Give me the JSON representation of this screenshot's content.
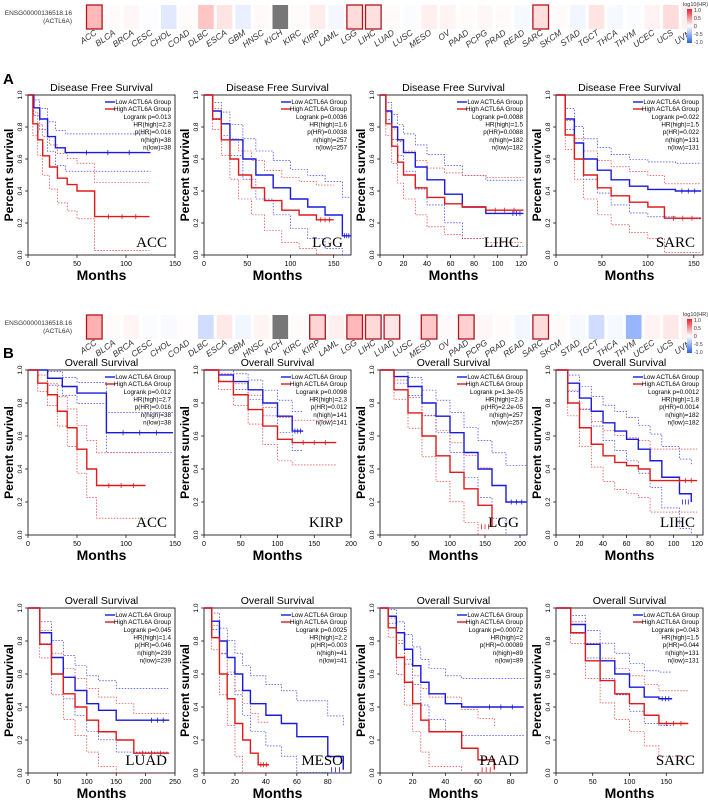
{
  "heatmap_top": {
    "gene_id": "ENSG00000136518.16",
    "gene_symbol": "(ACTL6A)",
    "cancers": [
      "ACC",
      "BLCA",
      "BRCA",
      "CESC",
      "CHOL",
      "COAD",
      "DLBC",
      "ESCA",
      "GBM",
      "HNSC",
      "KICH",
      "KIRC",
      "KIRP",
      "LAML",
      "LGG",
      "LIHC",
      "LUAD",
      "LUSC",
      "MESO",
      "OV",
      "PAAD",
      "PCPG",
      "PRAD",
      "READ",
      "SARC",
      "SKCM",
      "STAD",
      "TGCT",
      "THCA",
      "THYM",
      "UCEC",
      "UCS",
      "UVM"
    ],
    "log10hr": [
      0.36,
      0.02,
      0.04,
      -0.01,
      -0.14,
      0.02,
      0.3,
      0.14,
      -0.1,
      0.03,
      null,
      0.02,
      0.1,
      -0.05,
      0.18,
      0.16,
      0.02,
      -0.02,
      0.08,
      0.06,
      0.02,
      0.04,
      0.02,
      -0.04,
      0.17,
      0.02,
      -0.06,
      0.14,
      -0.04,
      -0.02,
      0.06,
      0.18,
      0.08
    ],
    "highlight": [
      "ACC",
      "LGG",
      "LIHC",
      "SARC"
    ],
    "legend_title": "log10(HR)",
    "legend_ticks": [
      "1.0",
      "0.5",
      "0",
      "-0.5",
      "-1.0"
    ]
  },
  "heatmap_bottom": {
    "gene_id": "ENSG00000136518.16",
    "gene_symbol": "(ACTL6A)",
    "log10hr": [
      0.4,
      0.02,
      0.05,
      -0.02,
      -0.03,
      0.01,
      -0.22,
      0.12,
      -0.06,
      0.05,
      null,
      0.02,
      0.22,
      0.08,
      0.36,
      0.2,
      0.14,
      -0.02,
      0.28,
      0.03,
      0.24,
      0.04,
      0.02,
      -0.05,
      0.18,
      0.02,
      -0.04,
      -0.22,
      -0.04,
      -0.48,
      0.06,
      0.12,
      0.08
    ],
    "highlight": [
      "ACC",
      "KIRP",
      "LGG",
      "LIHC",
      "LUAD",
      "MESO",
      "PAAD",
      "SARC"
    ],
    "legend_title": "log10(HR)",
    "legend_ticks": [
      "1.0",
      "0.5",
      "0",
      "-0.5",
      "-1.0"
    ]
  },
  "labels": {
    "panel_a": "A",
    "panel_b": "B"
  },
  "legend": {
    "low": "Low ACTL6A Group",
    "high": "High ACTL6A Group"
  },
  "axis": {
    "ylabel": "Percent survival",
    "xlabel": "Months"
  },
  "colors": {
    "low": "#1a1adb",
    "high": "#e01a1a",
    "neg": "#3b6cf0",
    "pos": "#f04a4a",
    "na": "#777777"
  },
  "chart_data": [
    {
      "type": "line",
      "id": "dfs-acc",
      "title": "Disease Free Survival",
      "cancer": "ACC",
      "xlim": [
        0,
        150
      ],
      "xticks": [
        0,
        50,
        100,
        150
      ],
      "ylim": [
        0,
        1
      ],
      "stats": [
        "Logrank p=0.013",
        "HR(high)=2.3",
        "p(HR)=0.016",
        "n(high)=38",
        "n(low)=38"
      ],
      "series": [
        {
          "name": "Low ACTL6A Group",
          "x": [
            0,
            6,
            12,
            20,
            28,
            38,
            125
          ],
          "y": [
            1,
            0.92,
            0.85,
            0.74,
            0.67,
            0.64,
            0.64
          ]
        },
        {
          "name": "High ACTL6A Group",
          "x": [
            0,
            5,
            10,
            15,
            22,
            30,
            40,
            50,
            68,
            124
          ],
          "y": [
            1,
            0.82,
            0.72,
            0.62,
            0.55,
            0.48,
            0.44,
            0.4,
            0.24,
            0.24
          ]
        }
      ]
    },
    {
      "type": "line",
      "id": "dfs-lgg",
      "title": "Disease Free Survival",
      "cancer": "LGG",
      "xlim": [
        0,
        170
      ],
      "xticks": [
        0,
        50,
        100,
        150
      ],
      "ylim": [
        0,
        1
      ],
      "stats": [
        "Logrank p=0.0036",
        "HR(high)=1.6",
        "p(HR)=0.0038",
        "n(high)=257",
        "n(low)=257"
      ],
      "series": [
        {
          "name": "Low ACTL6A Group",
          "x": [
            0,
            10,
            20,
            30,
            45,
            60,
            80,
            100,
            120,
            140,
            160,
            170
          ],
          "y": [
            1,
            0.9,
            0.82,
            0.72,
            0.6,
            0.5,
            0.42,
            0.35,
            0.3,
            0.25,
            0.12,
            0.12
          ]
        },
        {
          "name": "High ACTL6A Group",
          "x": [
            0,
            10,
            20,
            30,
            40,
            55,
            70,
            90,
            110,
            130,
            150
          ],
          "y": [
            1,
            0.85,
            0.72,
            0.6,
            0.5,
            0.42,
            0.34,
            0.28,
            0.25,
            0.22,
            0.22
          ]
        }
      ]
    },
    {
      "type": "line",
      "id": "dfs-lihc",
      "title": "Disease Free Survival",
      "cancer": "LIHC",
      "xlim": [
        0,
        125
      ],
      "xticks": [
        0,
        20,
        40,
        60,
        80,
        100,
        120
      ],
      "ylim": [
        0,
        1
      ],
      "stats": [
        "Logrank p=0.0088",
        "HR(high)=1.5",
        "p(HR)=0.0088",
        "n(high)=182",
        "n(low)=182"
      ],
      "series": [
        {
          "name": "Low ACTL6A Group",
          "x": [
            0,
            5,
            10,
            15,
            20,
            30,
            40,
            55,
            70,
            90,
            110,
            122
          ],
          "y": [
            1,
            0.9,
            0.8,
            0.72,
            0.64,
            0.55,
            0.47,
            0.38,
            0.3,
            0.26,
            0.26,
            0.26
          ]
        },
        {
          "name": "High ACTL6A Group",
          "x": [
            0,
            5,
            10,
            15,
            20,
            30,
            40,
            55,
            70,
            90,
            122
          ],
          "y": [
            1,
            0.82,
            0.68,
            0.58,
            0.5,
            0.42,
            0.36,
            0.32,
            0.3,
            0.28,
            0.28
          ]
        }
      ]
    },
    {
      "type": "line",
      "id": "dfs-sarc",
      "title": "Disease Free Survival",
      "cancer": "SARC",
      "xlim": [
        0,
        160
      ],
      "xticks": [
        0,
        50,
        100,
        150
      ],
      "ylim": [
        0,
        1
      ],
      "stats": [
        "Logrank p=0.022",
        "HR(high)=1.5",
        "p(HR)=0.022",
        "n(high)=131",
        "n(low)=131"
      ],
      "series": [
        {
          "name": "Low ACTL6A Group",
          "x": [
            0,
            10,
            20,
            30,
            45,
            60,
            80,
            100,
            130,
            158
          ],
          "y": [
            1,
            0.85,
            0.7,
            0.6,
            0.53,
            0.47,
            0.43,
            0.41,
            0.4,
            0.4
          ]
        },
        {
          "name": "High ACTL6A Group",
          "x": [
            0,
            10,
            20,
            30,
            45,
            60,
            80,
            100,
            118,
            158
          ],
          "y": [
            1,
            0.75,
            0.6,
            0.5,
            0.42,
            0.37,
            0.33,
            0.3,
            0.23,
            0.23
          ]
        }
      ]
    },
    {
      "type": "line",
      "id": "os-acc",
      "title": "Overall Survival",
      "cancer": "ACC",
      "xlim": [
        0,
        150
      ],
      "xticks": [
        0,
        50,
        100,
        150
      ],
      "ylim": [
        0,
        1
      ],
      "stats": [
        "Logrank p=0.012",
        "HR(high)=2.7",
        "p(HR)=0.016",
        "n(high)=38",
        "n(low)=38"
      ],
      "series": [
        {
          "name": "Low ACTL6A Group",
          "x": [
            0,
            10,
            20,
            35,
            50,
            80,
            148
          ],
          "y": [
            1,
            1,
            0.95,
            0.9,
            0.86,
            0.62,
            0.62
          ]
        },
        {
          "name": "High ACTL6A Group",
          "x": [
            0,
            10,
            20,
            30,
            40,
            50,
            60,
            70,
            120
          ],
          "y": [
            1,
            0.92,
            0.85,
            0.75,
            0.65,
            0.52,
            0.4,
            0.3,
            0.3
          ]
        }
      ]
    },
    {
      "type": "line",
      "id": "os-kirp",
      "title": "Overall Survival",
      "cancer": "KIRP",
      "xlim": [
        0,
        200
      ],
      "xticks": [
        0,
        50,
        100,
        150,
        200
      ],
      "ylim": [
        0,
        1
      ],
      "stats": [
        "Logrank p=0.0098",
        "HR(high)=2.3",
        "p(HR)=0.012",
        "n(high)=141",
        "n(low)=141"
      ],
      "series": [
        {
          "name": "Low ACTL6A Group",
          "x": [
            0,
            20,
            40,
            60,
            80,
            100,
            120,
            135
          ],
          "y": [
            1,
            0.97,
            0.93,
            0.88,
            0.8,
            0.72,
            0.63,
            0.63
          ]
        },
        {
          "name": "High ACTL6A Group",
          "x": [
            0,
            20,
            40,
            60,
            80,
            100,
            120,
            180
          ],
          "y": [
            1,
            0.93,
            0.85,
            0.76,
            0.66,
            0.58,
            0.56,
            0.56
          ]
        }
      ]
    },
    {
      "type": "line",
      "id": "os-lgg",
      "title": "Overall Survival",
      "cancer": "LGG",
      "xlim": [
        0,
        210
      ],
      "xticks": [
        0,
        50,
        100,
        150,
        200
      ],
      "ylim": [
        0,
        1
      ],
      "stats": [
        "Logrank p=1.3e-05",
        "HR(high)=2.3",
        "p(HR)=2.2e-05",
        "n(high)=257",
        "n(low)=257"
      ],
      "series": [
        {
          "name": "Low ACTL6A Group",
          "x": [
            0,
            20,
            40,
            60,
            80,
            100,
            120,
            140,
            160,
            180,
            210
          ],
          "y": [
            1,
            0.96,
            0.9,
            0.8,
            0.72,
            0.62,
            0.5,
            0.4,
            0.3,
            0.2,
            0.2
          ]
        },
        {
          "name": "High ACTL6A Group",
          "x": [
            0,
            20,
            40,
            60,
            80,
            100,
            120,
            140,
            160
          ],
          "y": [
            1,
            0.88,
            0.74,
            0.6,
            0.48,
            0.38,
            0.28,
            0.18,
            0.05
          ]
        }
      ]
    },
    {
      "type": "line",
      "id": "os-lihc",
      "title": "Overall Survival",
      "cancer": "LIHC",
      "xlim": [
        0,
        125
      ],
      "xticks": [
        0,
        20,
        40,
        60,
        80,
        100,
        120
      ],
      "ylim": [
        0,
        1
      ],
      "stats": [
        "Logrank p=0.0012",
        "HR(high)=1.8",
        "p(HR)=0.0014",
        "n(high)=182",
        "n(low)=182"
      ],
      "series": [
        {
          "name": "Low ACTL6A Group",
          "x": [
            0,
            10,
            20,
            30,
            40,
            50,
            60,
            70,
            80,
            90,
            105,
            115
          ],
          "y": [
            1,
            0.92,
            0.83,
            0.75,
            0.68,
            0.63,
            0.58,
            0.52,
            0.45,
            0.35,
            0.25,
            0.2
          ]
        },
        {
          "name": "High ACTL6A Group",
          "x": [
            0,
            10,
            20,
            30,
            40,
            50,
            60,
            70,
            80,
            100,
            120
          ],
          "y": [
            1,
            0.8,
            0.65,
            0.55,
            0.48,
            0.44,
            0.42,
            0.4,
            0.33,
            0.33,
            0.33
          ]
        }
      ]
    },
    {
      "type": "line",
      "id": "os-luad",
      "title": "Overall Survival",
      "cancer": "LUAD",
      "xlim": [
        0,
        250
      ],
      "xticks": [
        0,
        50,
        100,
        150,
        200,
        250
      ],
      "ylim": [
        0,
        1
      ],
      "stats": [
        "Logrank p=0.045",
        "HR(high)=1.4",
        "p(HR)=0.046",
        "n(high)=239",
        "n(low)=239"
      ],
      "series": [
        {
          "name": "Low ACTL6A Group",
          "x": [
            0,
            20,
            40,
            60,
            80,
            100,
            120,
            150,
            200,
            240
          ],
          "y": [
            1,
            0.85,
            0.7,
            0.58,
            0.5,
            0.42,
            0.38,
            0.32,
            0.32,
            0.32
          ]
        },
        {
          "name": "High ACTL6A Group",
          "x": [
            0,
            20,
            40,
            60,
            80,
            100,
            120,
            150,
            180,
            240
          ],
          "y": [
            1,
            0.78,
            0.6,
            0.48,
            0.4,
            0.32,
            0.25,
            0.2,
            0.12,
            0.12
          ]
        }
      ]
    },
    {
      "type": "line",
      "id": "os-meso",
      "title": "Overall Survival",
      "cancer": "MESO",
      "xlim": [
        0,
        95
      ],
      "xticks": [
        0,
        20,
        40,
        60,
        80
      ],
      "ylim": [
        0,
        1
      ],
      "stats": [
        "Logrank p=0.0025",
        "HR(high)=2.2",
        "p(HR)=0.003",
        "n(high)=41",
        "n(low)=41"
      ],
      "series": [
        {
          "name": "Low ACTL6A Group",
          "x": [
            0,
            5,
            10,
            15,
            20,
            25,
            30,
            40,
            50,
            60,
            80,
            90
          ],
          "y": [
            1,
            0.92,
            0.8,
            0.7,
            0.6,
            0.5,
            0.42,
            0.35,
            0.3,
            0.22,
            0.1,
            0.02
          ]
        },
        {
          "name": "High ACTL6A Group",
          "x": [
            0,
            5,
            10,
            15,
            20,
            25,
            30,
            35,
            42
          ],
          "y": [
            1,
            0.82,
            0.6,
            0.45,
            0.3,
            0.2,
            0.12,
            0.05,
            0.05
          ]
        }
      ]
    },
    {
      "type": "line",
      "id": "os-paad",
      "title": "Overall Survival",
      "cancer": "PAAD",
      "xlim": [
        0,
        90
      ],
      "xticks": [
        0,
        20,
        40,
        60,
        80
      ],
      "ylim": [
        0,
        1
      ],
      "stats": [
        "Logrank p=0.00072",
        "HR(high)=2",
        "p(HR)=0.00089",
        "n(high)=89",
        "n(low)=89"
      ],
      "series": [
        {
          "name": "Low ACTL6A Group",
          "x": [
            0,
            5,
            10,
            15,
            20,
            25,
            30,
            40,
            50,
            60,
            88
          ],
          "y": [
            1,
            0.95,
            0.85,
            0.75,
            0.65,
            0.55,
            0.48,
            0.42,
            0.4,
            0.4,
            0.4
          ]
        },
        {
          "name": "High ACTL6A Group",
          "x": [
            0,
            5,
            10,
            15,
            20,
            25,
            30,
            40,
            50,
            60,
            70
          ],
          "y": [
            1,
            0.88,
            0.7,
            0.55,
            0.42,
            0.32,
            0.25,
            0.25,
            0.15,
            0.08,
            0.02
          ]
        }
      ]
    },
    {
      "type": "line",
      "id": "os-sarc",
      "title": "Overall Survival",
      "cancer": "SARC",
      "xlim": [
        0,
        200
      ],
      "xticks": [
        0,
        50,
        100,
        150
      ],
      "ylim": [
        0,
        1
      ],
      "stats": [
        "Logrank p=0.043",
        "HR(high)=1.5",
        "p(HR)=0.044",
        "n(high)=131",
        "n(low)=131"
      ],
      "series": [
        {
          "name": "Low ACTL6A Group",
          "x": [
            0,
            20,
            40,
            60,
            80,
            100,
            120,
            140,
            158
          ],
          "y": [
            1,
            0.9,
            0.78,
            0.68,
            0.6,
            0.52,
            0.46,
            0.45,
            0.45
          ]
        },
        {
          "name": "High ACTL6A Group",
          "x": [
            0,
            20,
            40,
            60,
            80,
            100,
            120,
            140,
            180
          ],
          "y": [
            1,
            0.85,
            0.68,
            0.56,
            0.48,
            0.42,
            0.35,
            0.3,
            0.3
          ]
        }
      ]
    }
  ]
}
